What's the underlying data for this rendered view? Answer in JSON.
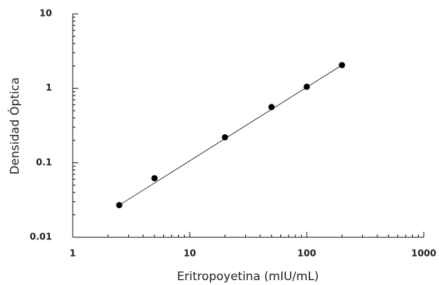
{
  "chart_data": {
    "type": "scatter",
    "x_label": "Eritropoyetina (mIU/mL)",
    "y_label": "Densidad Óptica",
    "x": [
      2.5,
      5,
      20,
      50,
      100,
      200
    ],
    "values": [
      0.027,
      0.062,
      0.22,
      0.56,
      1.05,
      2.05
    ],
    "color": "#000000",
    "xlim": [
      1,
      1000
    ],
    "ylim": [
      0.01,
      10
    ],
    "xticks": [
      1,
      10,
      100,
      1000
    ],
    "yticks": [
      0.01,
      0.1,
      1,
      10
    ],
    "x_log": true,
    "y_log": true,
    "trend_line": true
  }
}
